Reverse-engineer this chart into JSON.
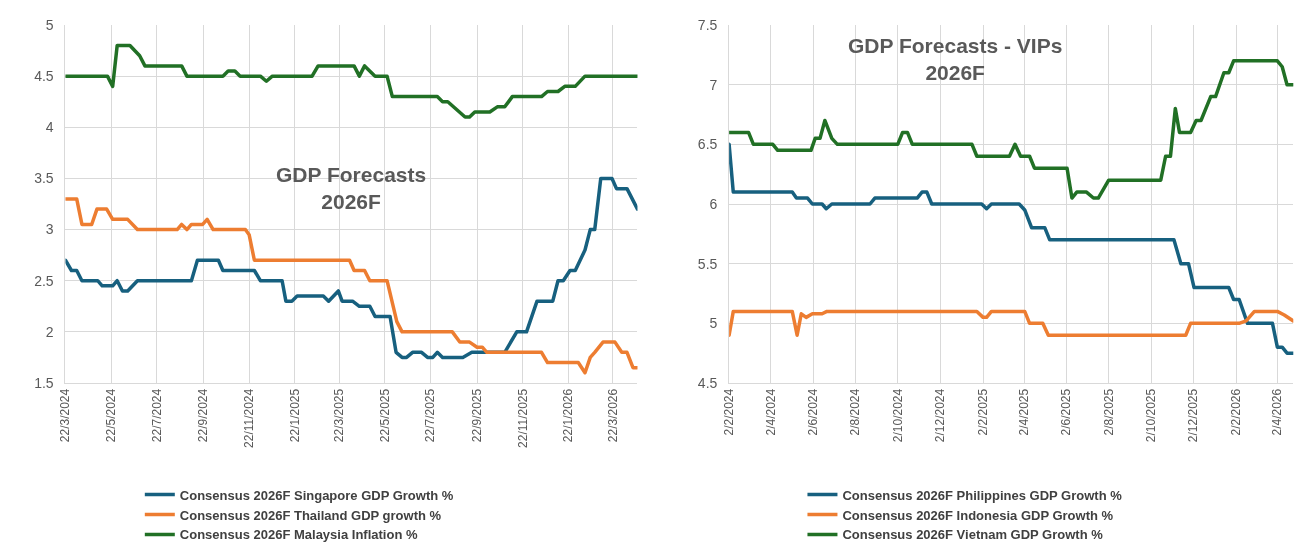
{
  "chart_data": [
    {
      "type": "line",
      "title": "GDP Forecasts\n2026F",
      "legend": "bottom",
      "grid": true,
      "xlim": [
        "2024-03-22",
        "2026-04-24"
      ],
      "xticks": [
        {
          "value": "2024-03-22",
          "label": "22/3/2024"
        },
        {
          "value": "2024-05-22",
          "label": "22/5/2024"
        },
        {
          "value": "2024-07-22",
          "label": "22/7/2024"
        },
        {
          "value": "2024-09-22",
          "label": "22/9/2024"
        },
        {
          "value": "2024-11-22",
          "label": "22/11/2024"
        },
        {
          "value": "2025-01-22",
          "label": "22/1/2025"
        },
        {
          "value": "2025-03-22",
          "label": "22/3/2025"
        },
        {
          "value": "2025-05-22",
          "label": "22/5/2025"
        },
        {
          "value": "2025-07-22",
          "label": "22/7/2025"
        },
        {
          "value": "2025-09-22",
          "label": "22/9/2025"
        },
        {
          "value": "2025-11-22",
          "label": "22/11/2025"
        },
        {
          "value": "2026-01-22",
          "label": "22/1/2026"
        },
        {
          "value": "2026-03-22",
          "label": "22/3/2026"
        }
      ],
      "ylim": [
        1.5,
        5
      ],
      "yticks": [
        1.5,
        2,
        2.5,
        3,
        3.5,
        4,
        4.5,
        5
      ],
      "series": [
        {
          "name": "Consensus 2026F Singapore GDP Growth %",
          "color": "#17607f",
          "x": [
            "2024-03-22",
            "2024-03-30",
            "2024-04-06",
            "2024-04-13",
            "2024-05-04",
            "2024-05-10",
            "2024-05-24",
            "2024-05-30",
            "2024-06-06",
            "2024-06-13",
            "2024-06-26",
            "2024-09-06",
            "2024-09-14",
            "2024-10-12",
            "2024-10-18",
            "2024-11-29",
            "2024-12-07",
            "2025-01-05",
            "2025-01-10",
            "2025-01-18",
            "2025-01-25",
            "2025-03-01",
            "2025-03-08",
            "2025-03-21",
            "2025-03-26",
            "2025-04-09",
            "2025-04-18",
            "2025-05-02",
            "2025-05-09",
            "2025-05-29",
            "2025-06-06",
            "2025-06-14",
            "2025-06-20",
            "2025-06-28",
            "2025-07-10",
            "2025-07-18",
            "2025-07-25",
            "2025-07-31",
            "2025-08-07",
            "2025-09-03",
            "2025-09-15",
            "2025-10-29",
            "2025-11-14",
            "2025-11-27",
            "2025-12-11",
            "2026-01-01",
            "2026-01-08",
            "2026-01-15",
            "2026-01-24",
            "2026-01-31",
            "2026-02-13",
            "2026-02-20",
            "2026-02-26",
            "2026-03-06",
            "2026-03-21",
            "2026-03-27",
            "2026-04-10",
            "2026-04-24"
          ],
          "values": [
            2.7,
            2.6,
            2.6,
            2.5,
            2.5,
            2.45,
            2.45,
            2.5,
            2.4,
            2.4,
            2.5,
            2.5,
            2.7,
            2.7,
            2.6,
            2.6,
            2.5,
            2.5,
            2.3,
            2.3,
            2.35,
            2.35,
            2.3,
            2.4,
            2.3,
            2.3,
            2.25,
            2.25,
            2.15,
            2.15,
            1.8,
            1.75,
            1.75,
            1.8,
            1.8,
            1.75,
            1.75,
            1.8,
            1.75,
            1.75,
            1.8,
            1.8,
            2.0,
            2.0,
            2.3,
            2.3,
            2.5,
            2.5,
            2.6,
            2.6,
            2.8,
            3.0,
            3.0,
            3.5,
            3.5,
            3.4,
            3.4,
            3.2
          ]
        },
        {
          "name": "Consensus 2026F Thailand GDP growth %",
          "color": "#ed7d31",
          "x": [
            "2024-03-22",
            "2024-04-06",
            "2024-04-13",
            "2024-04-26",
            "2024-05-03",
            "2024-05-16",
            "2024-05-24",
            "2024-06-13",
            "2024-06-26",
            "2024-08-18",
            "2024-08-24",
            "2024-08-31",
            "2024-09-06",
            "2024-09-21",
            "2024-09-27",
            "2024-10-05",
            "2024-11-17",
            "2024-11-22",
            "2024-11-29",
            "2025-04-05",
            "2025-04-11",
            "2025-04-25",
            "2025-05-02",
            "2025-05-25",
            "2025-06-07",
            "2025-06-14",
            "2025-08-20",
            "2025-08-30",
            "2025-09-12",
            "2025-09-22",
            "2025-09-29",
            "2025-10-05",
            "2025-12-17",
            "2025-12-25",
            "2026-02-04",
            "2026-02-13",
            "2026-02-20",
            "2026-02-26",
            "2026-03-09",
            "2026-03-25",
            "2026-04-03",
            "2026-04-10",
            "2026-04-18",
            "2026-04-24"
          ],
          "values": [
            3.3,
            3.3,
            3.05,
            3.05,
            3.2,
            3.2,
            3.1,
            3.1,
            3.0,
            3.0,
            3.05,
            3.0,
            3.05,
            3.05,
            3.1,
            3.0,
            3.0,
            2.95,
            2.7,
            2.7,
            2.6,
            2.6,
            2.5,
            2.5,
            2.1,
            2.0,
            2.0,
            1.9,
            1.9,
            1.85,
            1.85,
            1.8,
            1.8,
            1.7,
            1.7,
            1.6,
            1.75,
            1.8,
            1.9,
            1.9,
            1.8,
            1.8,
            1.65,
            1.65
          ]
        },
        {
          "name": "Consensus 2026F Malaysia Inflation %",
          "color": "#217025",
          "x": [
            "2024-03-22",
            "2024-05-17",
            "2024-05-24",
            "2024-05-30",
            "2024-06-16",
            "2024-06-29",
            "2024-07-06",
            "2024-08-24",
            "2024-08-31",
            "2024-10-18",
            "2024-10-25",
            "2024-11-03",
            "2024-11-10",
            "2024-12-07",
            "2024-12-15",
            "2024-12-23",
            "2025-02-14",
            "2025-02-22",
            "2025-04-11",
            "2025-04-18",
            "2025-04-25",
            "2025-05-09",
            "2025-05-25",
            "2025-06-01",
            "2025-07-31",
            "2025-08-07",
            "2025-08-14",
            "2025-09-06",
            "2025-09-12",
            "2025-09-19",
            "2025-10-09",
            "2025-10-19",
            "2025-10-29",
            "2025-11-08",
            "2025-12-17",
            "2025-12-25",
            "2026-01-08",
            "2026-01-17",
            "2026-01-31",
            "2026-02-13",
            "2026-04-24"
          ],
          "values": [
            4.5,
            4.5,
            4.4,
            4.8,
            4.8,
            4.7,
            4.6,
            4.6,
            4.5,
            4.5,
            4.55,
            4.55,
            4.5,
            4.5,
            4.45,
            4.5,
            4.5,
            4.6,
            4.6,
            4.5,
            4.6,
            4.5,
            4.5,
            4.3,
            4.3,
            4.25,
            4.25,
            4.1,
            4.1,
            4.15,
            4.15,
            4.2,
            4.2,
            4.3,
            4.3,
            4.35,
            4.35,
            4.4,
            4.4,
            4.5,
            4.5
          ]
        }
      ]
    },
    {
      "type": "line",
      "title": "GDP Forecasts - VIPs\n2026F",
      "legend": "bottom",
      "grid": true,
      "xlim": [
        "2024-02-02",
        "2026-04-25"
      ],
      "xticks": [
        {
          "value": "2024-02-02",
          "label": "2/2/2024"
        },
        {
          "value": "2024-04-02",
          "label": "2/4/2024"
        },
        {
          "value": "2024-06-02",
          "label": "2/6/2024"
        },
        {
          "value": "2024-08-02",
          "label": "2/8/2024"
        },
        {
          "value": "2024-10-02",
          "label": "2/10/2024"
        },
        {
          "value": "2024-12-02",
          "label": "2/12/2024"
        },
        {
          "value": "2025-02-02",
          "label": "2/2/2025"
        },
        {
          "value": "2025-04-02",
          "label": "2/4/2025"
        },
        {
          "value": "2025-06-02",
          "label": "2/6/2025"
        },
        {
          "value": "2025-08-02",
          "label": "2/8/2025"
        },
        {
          "value": "2025-10-02",
          "label": "2/10/2025"
        },
        {
          "value": "2025-12-02",
          "label": "2/12/2025"
        },
        {
          "value": "2026-02-02",
          "label": "2/2/2026"
        },
        {
          "value": "2026-04-02",
          "label": "2/4/2026"
        }
      ],
      "ylim": [
        4.5,
        7.5
      ],
      "yticks": [
        4.5,
        5,
        5.5,
        6,
        6.5,
        7,
        7.5
      ],
      "series": [
        {
          "name": "Consensus 2026F Philippines GDP Growth %",
          "color": "#17607f",
          "x": [
            "2024-02-02",
            "2024-02-08",
            "2024-05-03",
            "2024-05-09",
            "2024-05-25",
            "2024-06-01",
            "2024-06-15",
            "2024-06-21",
            "2024-06-29",
            "2024-08-23",
            "2024-08-30",
            "2024-10-30",
            "2024-11-06",
            "2024-11-13",
            "2024-11-20",
            "2025-01-31",
            "2025-02-07",
            "2025-02-14",
            "2025-03-26",
            "2025-04-03",
            "2025-04-13",
            "2025-05-02",
            "2025-05-09",
            "2025-11-04",
            "2025-11-14",
            "2025-11-25",
            "2025-12-03",
            "2026-01-22",
            "2026-01-29",
            "2026-02-06",
            "2026-02-18",
            "2026-03-26",
            "2026-04-02",
            "2026-04-09",
            "2026-04-16",
            "2026-04-25"
          ],
          "values": [
            6.5,
            6.1,
            6.1,
            6.05,
            6.05,
            6.0,
            6.0,
            5.96,
            6.0,
            6.0,
            6.05,
            6.05,
            6.1,
            6.1,
            6.0,
            6.0,
            5.96,
            6.0,
            6.0,
            5.95,
            5.8,
            5.8,
            5.7,
            5.7,
            5.5,
            5.5,
            5.3,
            5.3,
            5.2,
            5.2,
            5.0,
            5.0,
            4.8,
            4.8,
            4.75,
            4.75
          ]
        },
        {
          "name": "Consensus 2026F Indonesia GDP Growth %",
          "color": "#ed7d31",
          "x": [
            "2024-02-02",
            "2024-02-08",
            "2024-05-03",
            "2024-05-10",
            "2024-05-16",
            "2024-05-23",
            "2024-06-01",
            "2024-06-15",
            "2024-06-22",
            "2025-01-24",
            "2025-02-02",
            "2025-02-07",
            "2025-02-14",
            "2025-04-03",
            "2025-04-10",
            "2025-04-29",
            "2025-05-07",
            "2025-11-21",
            "2025-11-28",
            "2026-02-06",
            "2026-02-16",
            "2026-02-28",
            "2026-04-02",
            "2026-04-12",
            "2026-04-25"
          ],
          "values": [
            4.9,
            5.1,
            5.1,
            4.9,
            5.08,
            5.05,
            5.08,
            5.08,
            5.1,
            5.1,
            5.05,
            5.05,
            5.1,
            5.1,
            5.0,
            5.0,
            4.9,
            4.9,
            5.0,
            5.0,
            5.02,
            5.1,
            5.1,
            5.07,
            5.02
          ]
        },
        {
          "name": "Consensus 2026F Vietnam GDP Growth %",
          "color": "#217025",
          "x": [
            "2024-02-02",
            "2024-03-01",
            "2024-03-08",
            "2024-04-05",
            "2024-04-12",
            "2024-05-30",
            "2024-06-05",
            "2024-06-12",
            "2024-06-19",
            "2024-06-29",
            "2024-07-07",
            "2024-10-02",
            "2024-10-09",
            "2024-10-16",
            "2024-10-23",
            "2025-01-17",
            "2025-01-24",
            "2025-03-12",
            "2025-03-20",
            "2025-03-28",
            "2025-04-10",
            "2025-04-17",
            "2025-06-03",
            "2025-06-10",
            "2025-06-17",
            "2025-07-01",
            "2025-07-11",
            "2025-07-18",
            "2025-08-02",
            "2025-10-16",
            "2025-10-23",
            "2025-10-30",
            "2025-11-06",
            "2025-11-12",
            "2025-11-28",
            "2025-12-06",
            "2025-12-13",
            "2025-12-27",
            "2026-01-03",
            "2026-01-15",
            "2026-01-22",
            "2026-01-29",
            "2026-04-02",
            "2026-04-09",
            "2026-04-16",
            "2026-04-25"
          ],
          "values": [
            6.6,
            6.6,
            6.5,
            6.5,
            6.45,
            6.45,
            6.55,
            6.55,
            6.7,
            6.55,
            6.5,
            6.5,
            6.6,
            6.6,
            6.5,
            6.5,
            6.4,
            6.4,
            6.5,
            6.4,
            6.4,
            6.3,
            6.3,
            6.05,
            6.1,
            6.1,
            6.05,
            6.05,
            6.2,
            6.2,
            6.4,
            6.4,
            6.8,
            6.6,
            6.6,
            6.7,
            6.7,
            6.9,
            6.9,
            7.1,
            7.1,
            7.2,
            7.2,
            7.15,
            7.0,
            7.0
          ]
        }
      ]
    }
  ]
}
